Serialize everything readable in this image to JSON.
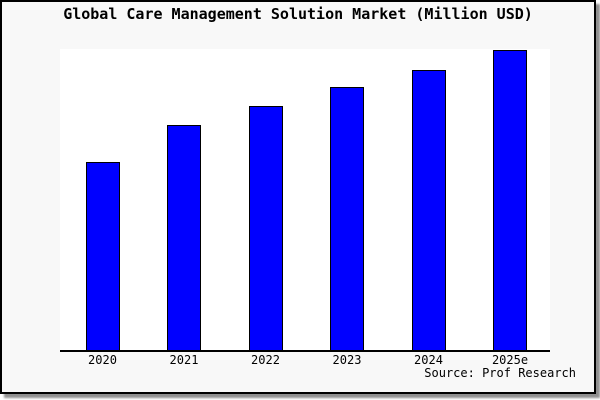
{
  "source": "Source: Prof Research",
  "colors": {
    "bar_fill": "#0000ff",
    "bar_border": "#000000",
    "panel_background": "#f8f8f8",
    "plot_background": "#ffffff",
    "axis": "#000000",
    "text": "#000000",
    "frame_border": "#000000",
    "frame_shadow": "#8f8f8f"
  },
  "chart_data": {
    "type": "bar",
    "title": "Global Care Management Solution Market (Million USD)",
    "categories": [
      "2020",
      "2021",
      "2022",
      "2023",
      "2024",
      "2025e"
    ],
    "values": [
      62.6,
      74.9,
      81.2,
      87.5,
      93.3,
      100
    ],
    "values_unit": "relative index (% of 2025e bar height; no y-axis scale shown in chart)",
    "xlabel": "",
    "ylabel": "",
    "ylim": [
      0,
      100
    ],
    "grid": false,
    "legend": "none",
    "y_axis_labels": "none",
    "x_axis_line": true
  }
}
